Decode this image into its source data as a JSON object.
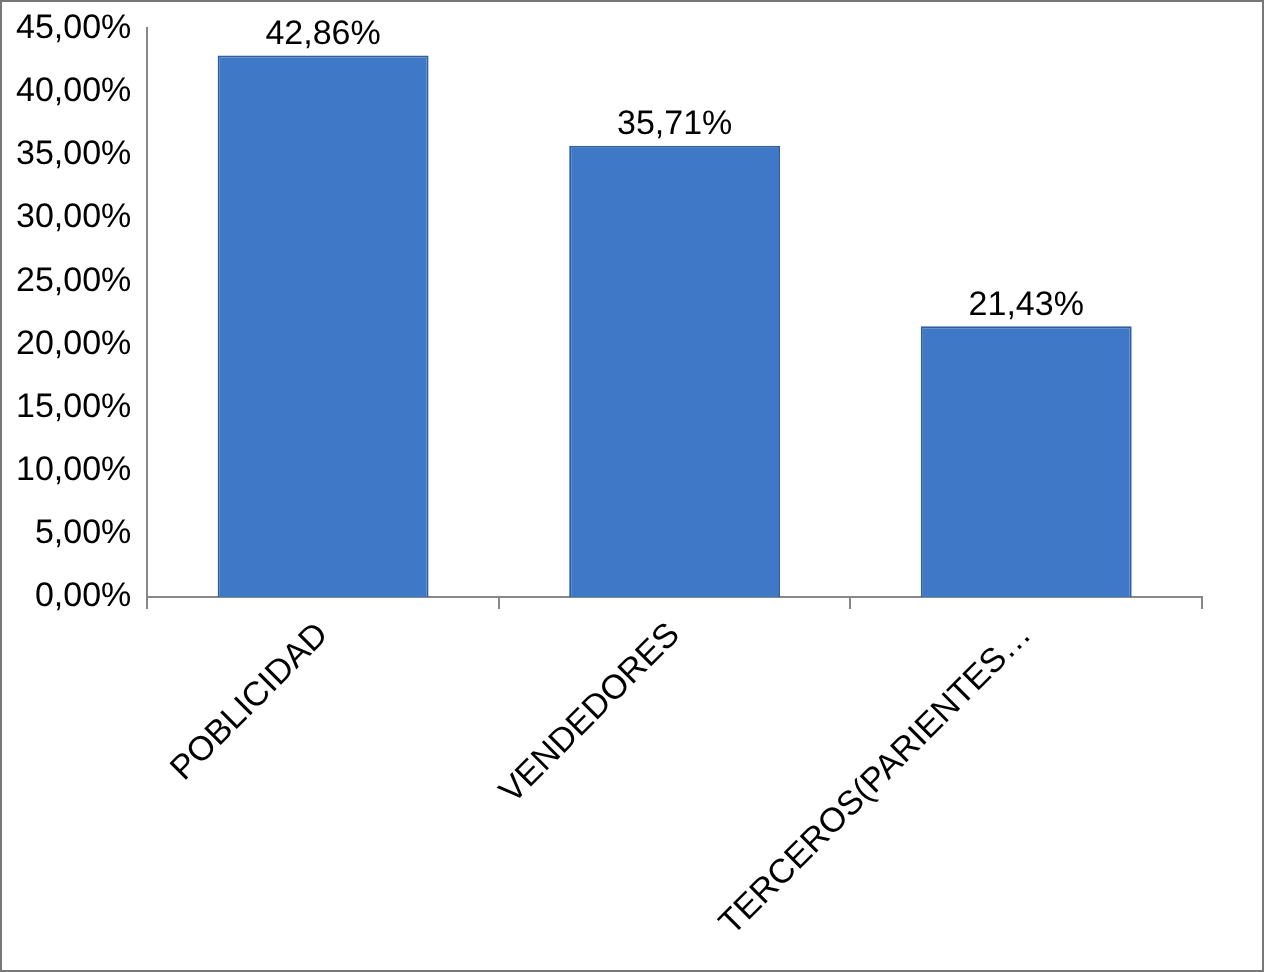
{
  "chart_data": {
    "type": "bar",
    "categories": [
      "POBLICIDAD",
      "VENDEDORES",
      "TERCEROS(PARIENTES…"
    ],
    "values": [
      42.86,
      35.71,
      21.43
    ],
    "color": "#3f78c6",
    "value_labels": [
      "42,86%",
      "35,71%",
      "21,43%"
    ],
    "ylim": [
      0,
      45
    ],
    "yticks": [
      {
        "value": 0,
        "label": "0,00%"
      },
      {
        "value": 5,
        "label": "5,00%"
      },
      {
        "value": 10,
        "label": "10,00%"
      },
      {
        "value": 15,
        "label": "15,00%"
      },
      {
        "value": 20,
        "label": "20,00%"
      },
      {
        "value": 25,
        "label": "25,00%"
      },
      {
        "value": 30,
        "label": "30,00%"
      },
      {
        "value": 35,
        "label": "35,00%"
      },
      {
        "value": 40,
        "label": "40,00%"
      },
      {
        "value": 45,
        "label": "45,00%"
      }
    ]
  }
}
